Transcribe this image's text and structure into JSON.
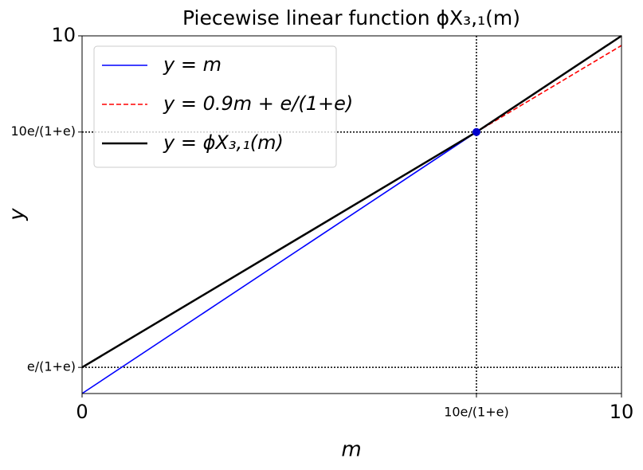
{
  "chart_data": {
    "type": "line",
    "title": "Piecewise linear function ϕX₃,₁(m)",
    "xlabel": "m",
    "ylabel": "y",
    "xlim": [
      0,
      10
    ],
    "ylim": [
      0,
      10
    ],
    "xticks": [
      0,
      {
        "value": 7.311,
        "label": "10e/(1+e)"
      },
      10
    ],
    "yticks": [
      {
        "value": 0.731,
        "label": "e/(1+e)"
      },
      {
        "value": 7.311,
        "label": "10e/(1+e)"
      },
      10
    ],
    "series": [
      {
        "name": "y = m",
        "color": "#0000ff",
        "linestyle": "solid",
        "x": [
          0,
          10
        ],
        "values": [
          0,
          10
        ]
      },
      {
        "name": "y = 0.9m + e/(1+e)",
        "color": "#ff0000",
        "linestyle": "dashed",
        "x": [
          7.311,
          10
        ],
        "values": [
          7.311,
          9.731
        ]
      },
      {
        "name": "y = ϕX₃,₁(m)",
        "color": "#000000",
        "linestyle": "solid",
        "x": [
          0,
          7.311,
          10
        ],
        "values": [
          0.731,
          7.311,
          10
        ]
      }
    ],
    "reference_lines": {
      "x": [
        7.311
      ],
      "y": [
        0.731,
        7.311
      ]
    },
    "points": [
      {
        "x": 7.311,
        "y": 7.311,
        "color": "#0000cc"
      }
    ],
    "legend": "upper left"
  }
}
